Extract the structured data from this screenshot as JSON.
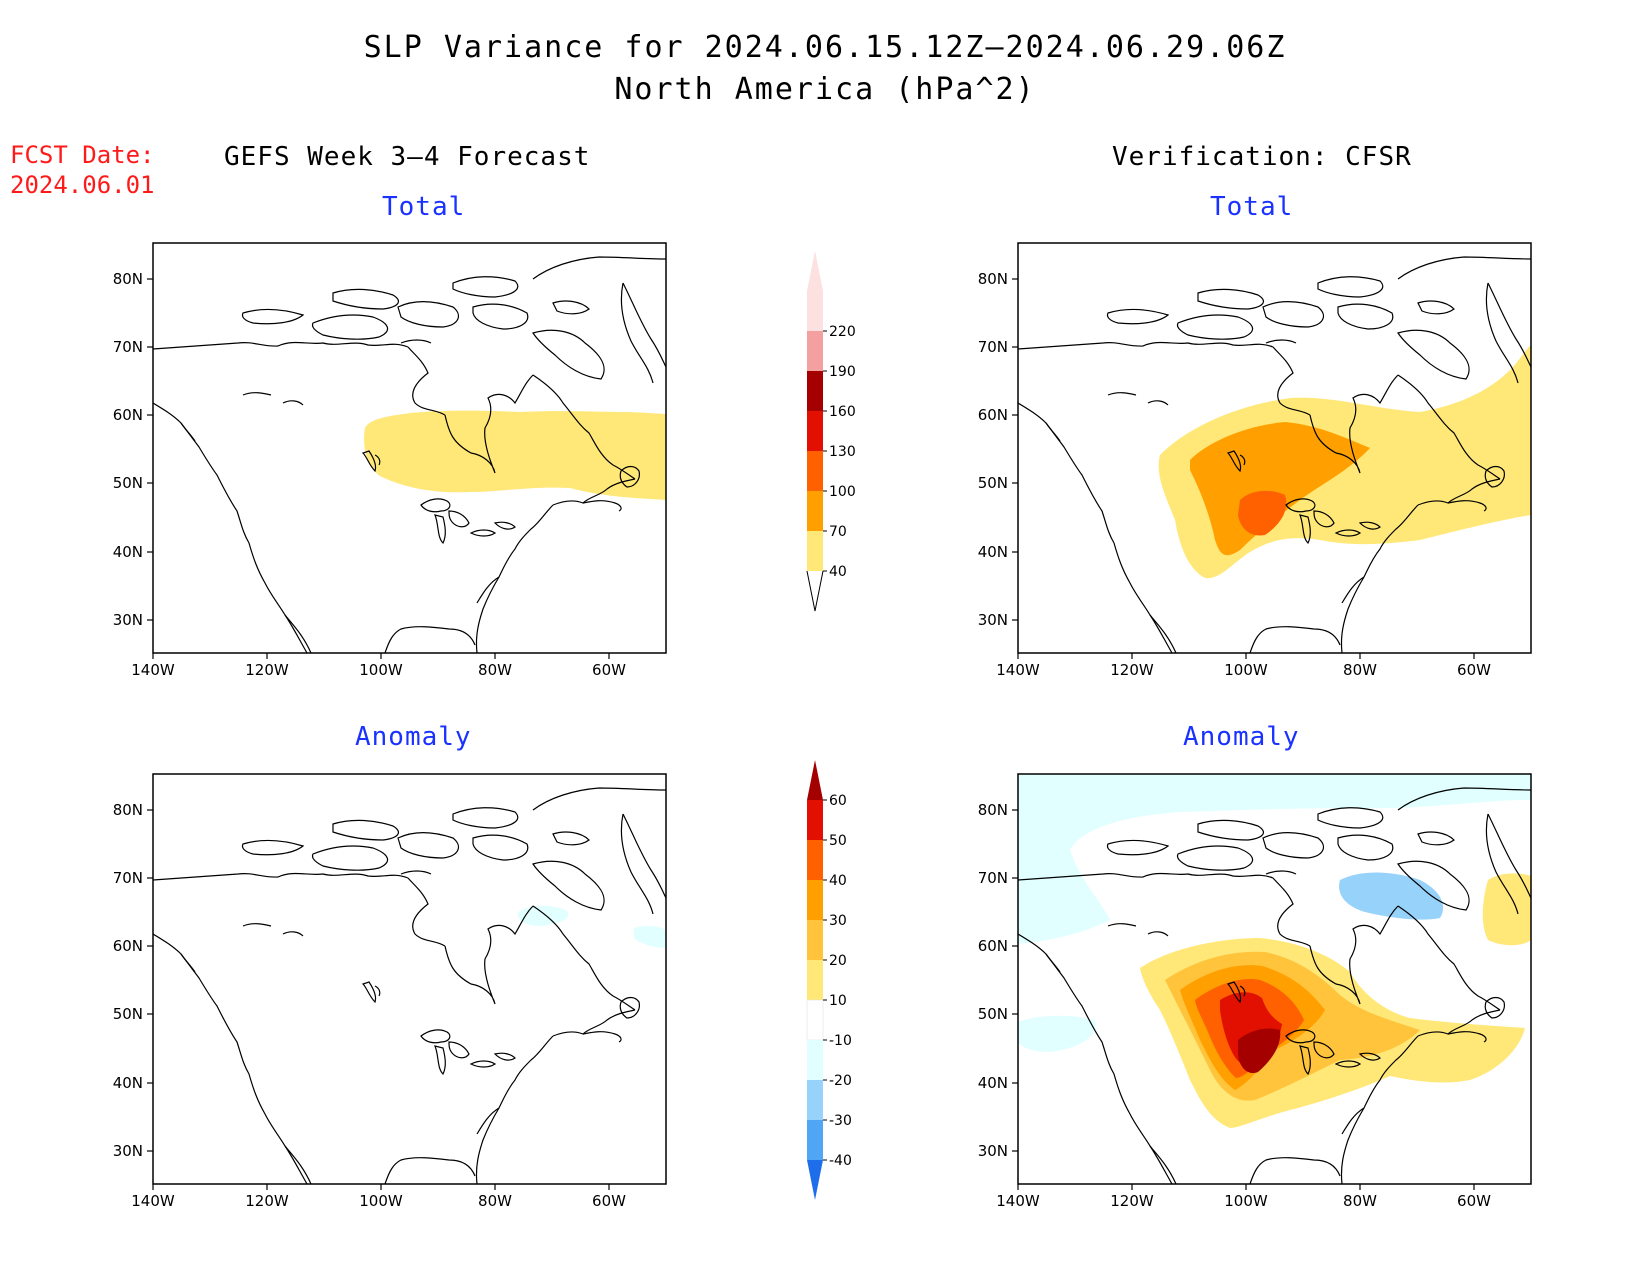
{
  "title": {
    "line1": "SLP Variance for 2024.06.15.12Z–2024.06.29.06Z",
    "line2": "North America (hPa^2)"
  },
  "fcst_date": {
    "label": "FCST Date:",
    "value": "2024.06.01"
  },
  "columns": {
    "left": "GEFS Week 3–4 Forecast",
    "right": "Verification: CFSR"
  },
  "panel_titles": {
    "total": "Total",
    "anomaly": "Anomaly"
  },
  "axes": {
    "lat_labels": [
      "80N",
      "70N",
      "60N",
      "50N",
      "40N",
      "30N"
    ],
    "lon_labels": [
      "140W",
      "120W",
      "100W",
      "80W",
      "60W"
    ]
  },
  "colorbar_total": {
    "levels": [
      "40",
      "70",
      "100",
      "130",
      "160",
      "190",
      "220"
    ],
    "colors": [
      "#ffe878",
      "#ffa000",
      "#ff6000",
      "#e11000",
      "#a50000",
      "#f4a0a0",
      "#fde0e0"
    ]
  },
  "colorbar_anomaly": {
    "levels": [
      "60",
      "50",
      "40",
      "30",
      "20",
      "10",
      "-10",
      "-20",
      "-30",
      "-40"
    ],
    "colors": [
      "#a50000",
      "#e11000",
      "#ff6000",
      "#ffa000",
      "#ffc43c",
      "#ffe878",
      "#ffffff",
      "#e1ffff",
      "#96d2fa",
      "#50a5f5",
      "#1e6eeb"
    ]
  }
}
